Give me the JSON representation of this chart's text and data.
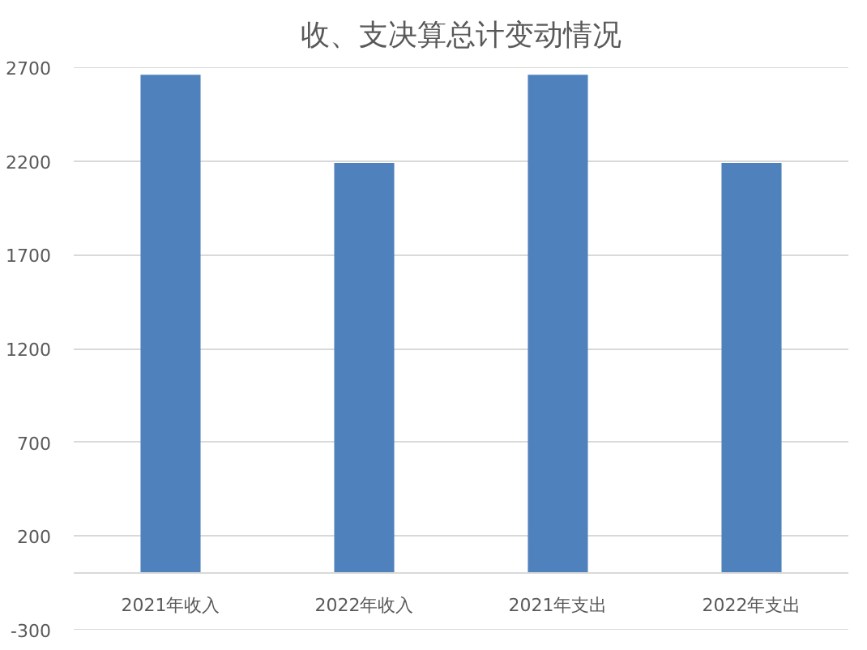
{
  "chart_data": {
    "type": "bar",
    "title": "收、支决算总计变动情况",
    "categories": [
      "2021年收入",
      "2022年收入",
      "2021年支出",
      "2022年支出"
    ],
    "values": [
      2660,
      2190,
      2660,
      2190
    ],
    "color": "#4f81bd",
    "ylim": [
      -300,
      2700
    ],
    "yticks": [
      -300,
      200,
      700,
      1200,
      1700,
      2200,
      2700
    ],
    "grid": "y"
  }
}
